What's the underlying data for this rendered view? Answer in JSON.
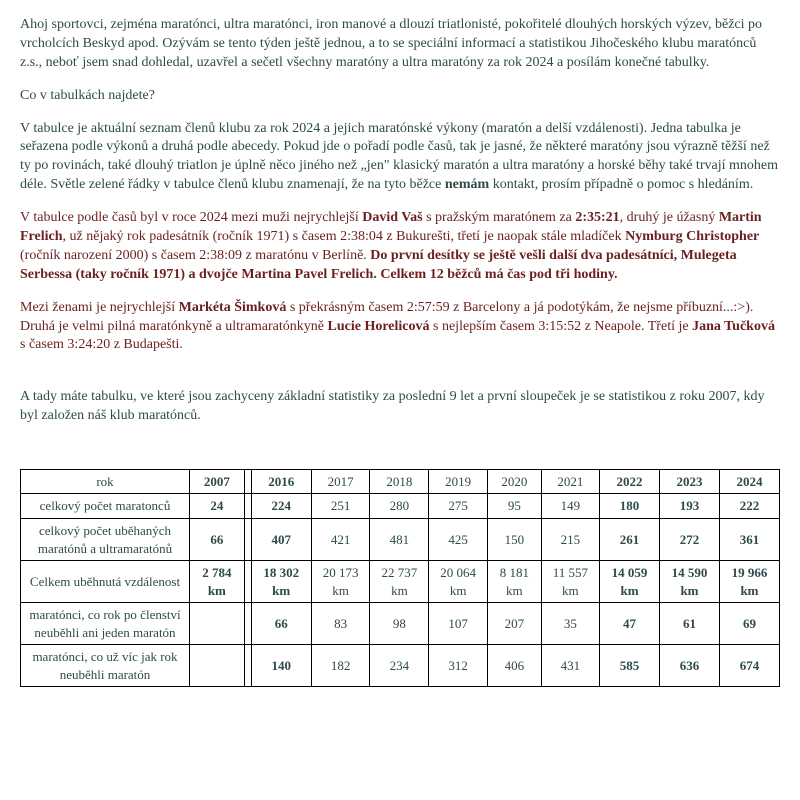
{
  "p1": "Ahoj sportovci, zejména maratónci, ultra maratónci, iron manové a dlouzí triatlonisté, pokořitelé dlouhých horských výzev, běžci po vrcholcích Beskyd apod. Ozývám se tento týden ještě jednou, a to se speciální informací a statistikou Jihočeského klubu maratónců z.s., neboť jsem snad dohledal, uzavřel a sečetl všechny maratóny a ultra maratóny za rok 2024 a posílám konečné tabulky.",
  "p2": "Co v tabulkách najdete?",
  "p3a": "V tabulce je aktuální seznam členů klubu za rok 2024 a jejich maratónské výkony (maratón a delší vzdálenosti). Jedna tabulka je seřazena podle výkonů a druhá podle abecedy. Pokud jde o pořadí podle časů, tak je jasné, že některé maratóny jsou výrazně těžší než ty po rovinách, také dlouhý triatlon je úplně něco jiného než „jen\" klasický maratón a ultra maratóny a horské běhy také trvají mnohem déle. Světle zelené řádky v tabulce členů klubu znamenají, že na tyto běžce ",
  "p3b": "nemám",
  "p3c": " kontakt, prosím případně o pomoc s hledáním.",
  "p4a": "V tabulce podle časů byl v roce 2024 mezi muži nejrychlejší ",
  "p4b": "David Vaš",
  "p4c": " s pražským maratónem za ",
  "p4d": "2:35:21",
  "p4e": ", druhý je úžasný ",
  "p4f": "Martin Frelich",
  "p4g": ", už nějaký rok padesátník (ročník 1971) s časem 2:38:04 z Bukurešti, třetí je naopak stále mladíček ",
  "p4h": "Nymburg Christopher",
  "p4i": " (ročník narození 2000) s časem 2:38:09 z maratónu v Berlíně. ",
  "p4j": "Do první desítky se ještě vešli další dva padesátníci, Mulegeta Serbessa (taky ročník 1971) a dvojče Martina Pavel Frelich. Celkem 12 běžců má čas pod tři hodiny.",
  "p5a": "Mezi ženami je nejrychlejší ",
  "p5b": "Markéta Šimková",
  "p5c": " s překrásným časem 2:57:59 z Barcelony a já podotýkám, že nejsme příbuzní...:>). Druhá je velmi pilná maratónkyně a ultramaratónkyně ",
  "p5d": "Lucie Horelicová",
  "p5e": " s nejlepším časem 3:15:52 z Neapole. Třetí je ",
  "p5f": "Jana Tučková",
  "p5g": " s časem 3:24:20 z Budapešti.",
  "p6": "A tady máte tabulku, ve které jsou zachyceny základní statistiky za poslední 9 let a první sloupeček je se statistikou z roku 2007, kdy byl založen náš klub maratónců.",
  "table": {
    "headers": [
      "rok",
      "2007",
      "",
      "2016",
      "2017",
      "2018",
      "2019",
      "2020",
      "2021",
      "2022",
      "2023",
      "2024"
    ],
    "boldCols": [
      1,
      3,
      9,
      10,
      11
    ],
    "rows": [
      {
        "label": "celkový počet maratonců",
        "cells": [
          "24",
          "",
          "224",
          "251",
          "280",
          "275",
          "95",
          "149",
          "180",
          "193",
          "222"
        ]
      },
      {
        "label": "celkový počet uběhaných maratónů a ultramaratónů",
        "cells": [
          "66",
          "",
          "407",
          "421",
          "481",
          "425",
          "150",
          "215",
          "261",
          "272",
          "361"
        ]
      },
      {
        "label": "Celkem uběhnutá vzdálenost",
        "cells": [
          "2 784 km",
          "",
          "18 302 km",
          "20 173 km",
          "22 737 km",
          "20 064 km",
          "8 181 km",
          "11 557 km",
          "14 059 km",
          "14 590 km",
          "19 966 km"
        ]
      },
      {
        "label": "maratónci, co rok po členství neuběhli ani jeden maratón",
        "cells": [
          "",
          "",
          "66",
          "83",
          "98",
          "107",
          "207",
          "35",
          "47",
          "61",
          "69"
        ]
      },
      {
        "label": "maratónci, co už víc jak rok neuběhli maratón",
        "cells": [
          "",
          "",
          "140",
          "182",
          "234",
          "312",
          "406",
          "431",
          "585",
          "636",
          "674"
        ]
      }
    ]
  }
}
